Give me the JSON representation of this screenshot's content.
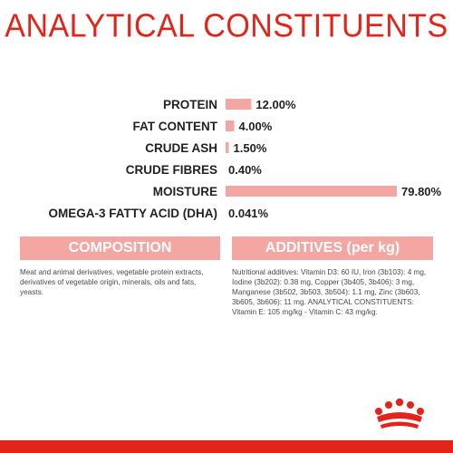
{
  "page": {
    "title": "ANALYTICAL CONSTITUENTS"
  },
  "chart_data": {
    "type": "bar",
    "orientation": "horizontal",
    "categories": [
      "PROTEIN",
      "FAT CONTENT",
      "CRUDE ASH",
      "CRUDE FIBRES",
      "MOISTURE",
      "OMEGA-3 FATTY ACID (DHA)"
    ],
    "values": [
      12.0,
      4.0,
      1.5,
      0.4,
      79.8,
      0.041
    ],
    "value_labels": [
      "12.00%",
      "4.00%",
      "1.50%",
      "0.40%",
      "79.80%",
      "0.041%"
    ],
    "xlim": [
      0,
      100
    ],
    "grid": false,
    "legend": "none",
    "bar_color": "#f4a6a3"
  },
  "composition": {
    "header": "COMPOSITION",
    "text": "Meat and animal derivatives, vegetable protein extracts, derivatives of vegetable origin, minerals, oils and fats, yeasts."
  },
  "additives": {
    "header": "ADDITIVES (per kg)",
    "text": "Nutritional additives: Vitamin D3: 60 IU, Iron (3b103): 4 mg, Iodine (3b202): 0.38 mg, Copper (3b405, 3b406): 3 mg, Manganese (3b502, 3b503, 3b504): 1.1 mg, Zinc (3b603, 3b605, 3b606): 11 mg. ANALYTICAL CONSTITUENTS: Vitamin E: 105 mg/kg - Vitamin C: 43 mg/kg."
  },
  "colors": {
    "brand_red": "#e3241b",
    "accent_pink": "#f4a6a3",
    "label_text": "#222222"
  },
  "icons": {
    "logo": "crown-logo-icon"
  }
}
